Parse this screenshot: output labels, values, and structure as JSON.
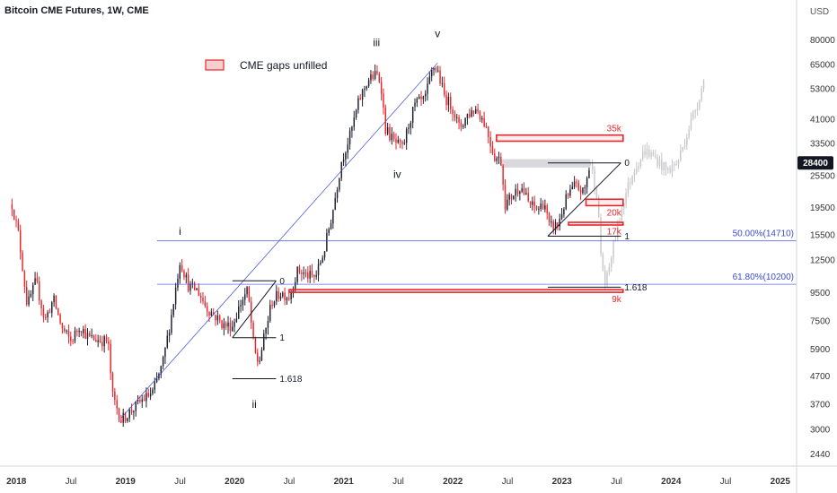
{
  "header": {
    "title": "Bitcoin CME Futures, 1W, CME"
  },
  "legend": {
    "label": "CME gaps unfilled",
    "swatch_fill": "#f6d0d0",
    "swatch_stroke": "#e8262b"
  },
  "colors": {
    "up": "#1e2030",
    "down": "#e8262b",
    "projection": "#c8c8cc",
    "fib_line": "#3b4bd8",
    "gap": "#e8262b",
    "price_badge": "#131722"
  },
  "chart_data": {
    "type": "candlestick",
    "y_axis": {
      "unit": "USD",
      "scale": "log",
      "range": [
        2200,
        95000
      ],
      "ticks": [
        80000,
        65000,
        53000,
        41000,
        33500,
        25500,
        19500,
        15500,
        12500,
        9500,
        7500,
        5900,
        4700,
        3700,
        3000,
        2440
      ],
      "current_price": 28400
    },
    "x_axis": {
      "range": [
        2017.85,
        2025.15
      ],
      "ticks": [
        {
          "t": 2018.0,
          "label": "2018"
        },
        {
          "t": 2018.5,
          "label": "Jul"
        },
        {
          "t": 2019.0,
          "label": "2019"
        },
        {
          "t": 2019.5,
          "label": "Jul"
        },
        {
          "t": 2020.0,
          "label": "2020"
        },
        {
          "t": 2020.5,
          "label": "Jul"
        },
        {
          "t": 2021.0,
          "label": "2021"
        },
        {
          "t": 2021.5,
          "label": "Jul"
        },
        {
          "t": 2022.0,
          "label": "2022"
        },
        {
          "t": 2022.5,
          "label": "Jul"
        },
        {
          "t": 2023.0,
          "label": "2023"
        },
        {
          "t": 2023.5,
          "label": "Jul"
        },
        {
          "t": 2024.0,
          "label": "2024"
        },
        {
          "t": 2024.5,
          "label": "Jul"
        },
        {
          "t": 2025.0,
          "label": "2025"
        }
      ]
    },
    "price_path": [
      [
        2017.96,
        20000
      ],
      [
        2018.02,
        15500
      ],
      [
        2018.1,
        8500
      ],
      [
        2018.18,
        10500
      ],
      [
        2018.26,
        7500
      ],
      [
        2018.34,
        9000
      ],
      [
        2018.42,
        7000
      ],
      [
        2018.5,
        6300
      ],
      [
        2018.58,
        7200
      ],
      [
        2018.66,
        6500
      ],
      [
        2018.74,
        6400
      ],
      [
        2018.84,
        6300
      ],
      [
        2018.88,
        4000
      ],
      [
        2018.96,
        3250
      ],
      [
        2019.05,
        3500
      ],
      [
        2019.14,
        3800
      ],
      [
        2019.25,
        4100
      ],
      [
        2019.34,
        5200
      ],
      [
        2019.42,
        7800
      ],
      [
        2019.5,
        12500
      ],
      [
        2019.58,
        10000
      ],
      [
        2019.66,
        9700
      ],
      [
        2019.74,
        8400
      ],
      [
        2019.82,
        7800
      ],
      [
        2019.9,
        7200
      ],
      [
        2019.98,
        7200
      ],
      [
        2020.06,
        8800
      ],
      [
        2020.12,
        9700
      ],
      [
        2020.18,
        5800
      ],
      [
        2020.22,
        5200
      ],
      [
        2020.28,
        6800
      ],
      [
        2020.34,
        8800
      ],
      [
        2020.42,
        9500
      ],
      [
        2020.5,
        9200
      ],
      [
        2020.58,
        11500
      ],
      [
        2020.66,
        11000
      ],
      [
        2020.74,
        10800
      ],
      [
        2020.82,
        13500
      ],
      [
        2020.9,
        19000
      ],
      [
        2020.98,
        29000
      ],
      [
        2021.06,
        36000
      ],
      [
        2021.14,
        48000
      ],
      [
        2021.22,
        57000
      ],
      [
        2021.3,
        60000
      ],
      [
        2021.34,
        56000
      ],
      [
        2021.38,
        38000
      ],
      [
        2021.46,
        34000
      ],
      [
        2021.54,
        32000
      ],
      [
        2021.6,
        40000
      ],
      [
        2021.66,
        47000
      ],
      [
        2021.74,
        48000
      ],
      [
        2021.82,
        64000
      ],
      [
        2021.86,
        62000
      ],
      [
        2021.92,
        50000
      ],
      [
        2022.0,
        45000
      ],
      [
        2022.06,
        38000
      ],
      [
        2022.14,
        43000
      ],
      [
        2022.22,
        45000
      ],
      [
        2022.3,
        39000
      ],
      [
        2022.38,
        30000
      ],
      [
        2022.44,
        29000
      ],
      [
        2022.48,
        20000
      ],
      [
        2022.56,
        22000
      ],
      [
        2022.62,
        23500
      ],
      [
        2022.7,
        20000
      ],
      [
        2022.78,
        19200
      ],
      [
        2022.84,
        20500
      ],
      [
        2022.88,
        16500
      ],
      [
        2022.96,
        16800
      ],
      [
        2023.04,
        21000
      ],
      [
        2023.12,
        23500
      ],
      [
        2023.2,
        22000
      ],
      [
        2023.26,
        28400
      ]
    ],
    "projection_path": [
      [
        2023.26,
        28400
      ],
      [
        2023.32,
        22000
      ],
      [
        2023.36,
        12500
      ],
      [
        2023.4,
        10000
      ],
      [
        2023.46,
        13500
      ],
      [
        2023.56,
        20500
      ],
      [
        2023.66,
        27000
      ],
      [
        2023.76,
        31500
      ],
      [
        2023.86,
        29500
      ],
      [
        2023.96,
        26500
      ],
      [
        2024.06,
        28500
      ],
      [
        2024.16,
        38000
      ],
      [
        2024.24,
        47000
      ],
      [
        2024.3,
        57000
      ]
    ],
    "wave_labels": [
      {
        "text": "i",
        "t": 2019.5,
        "p": 15500
      },
      {
        "text": "ii",
        "t": 2020.18,
        "p": 3600
      },
      {
        "text": "iii",
        "t": 2021.3,
        "p": 76000
      },
      {
        "text": "iv",
        "t": 2021.49,
        "p": 25000
      },
      {
        "text": "v",
        "t": 2021.86,
        "p": 82000
      }
    ],
    "fib_levels": [
      {
        "label": "50.00%(14710)",
        "price": 14710
      },
      {
        "label": "61.80%(10200)",
        "price": 10200
      }
    ],
    "cme_gaps": [
      {
        "label": "35k",
        "t_start": 2022.4,
        "t_end": 2023.56,
        "p_low": 34100,
        "p_high": 35900
      },
      {
        "label": "20k",
        "t_start": 2023.22,
        "t_end": 2023.56,
        "p_low": 19800,
        "p_high": 20900
      },
      {
        "label": "17k",
        "t_start": 2023.06,
        "t_end": 2023.56,
        "p_low": 16900,
        "p_high": 17200
      },
      {
        "label": "9k",
        "t_start": 2020.5,
        "t_end": 2023.56,
        "p_low": 9550,
        "p_high": 9750
      }
    ],
    "fib_extensions": [
      {
        "lines": [
          {
            "label": "0",
            "t1": 2019.98,
            "t2": 2020.38,
            "price": 10500
          },
          {
            "label": "1",
            "t1": 2019.98,
            "t2": 2020.38,
            "price": 6500
          },
          {
            "label": "1.618",
            "t1": 2019.98,
            "t2": 2020.38,
            "price": 4600
          }
        ]
      },
      {
        "lines": [
          {
            "label": "0",
            "t1": 2022.87,
            "t2": 2023.54,
            "price": 28400
          },
          {
            "label": "1",
            "t1": 2022.87,
            "t2": 2023.54,
            "price": 15300
          },
          {
            "label": "1.618",
            "t1": 2022.87,
            "t2": 2023.54,
            "price": 9950
          }
        ]
      }
    ],
    "diagonals": [
      {
        "t1": 2018.96,
        "p1": 3300,
        "t2": 2021.86,
        "p2": 66000
      },
      {
        "t1": 2019.98,
        "p1": 6500,
        "t2": 2020.38,
        "p2": 10500
      },
      {
        "t1": 2022.87,
        "p1": 15300,
        "t2": 2023.54,
        "p2": 28400
      }
    ],
    "shaded_band": {
      "t_start": 2022.44,
      "t_end": 2023.26,
      "p_low": 27300,
      "p_high": 29300
    }
  }
}
